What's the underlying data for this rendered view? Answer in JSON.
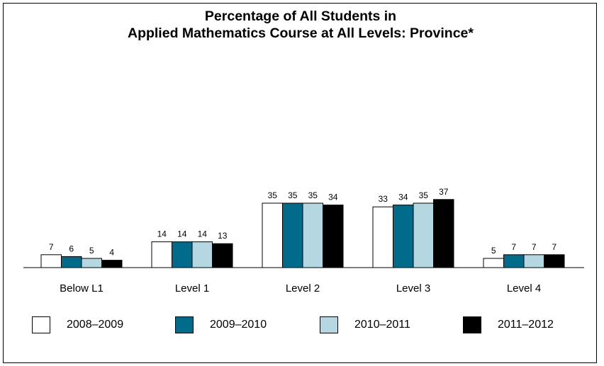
{
  "chart_data": {
    "type": "bar",
    "title": "Percentage of All Students in",
    "subtitle": "Applied Mathematics Course at All Levels: Province*",
    "xlabel": "",
    "ylabel": "",
    "ylim": [
      0,
      40
    ],
    "grid": false,
    "legend_position": "bottom",
    "categories": [
      "Below L1",
      "Level 1",
      "Level 2",
      "Level 3",
      "Level 4"
    ],
    "series": [
      {
        "name": "2008–2009",
        "color": "#ffffff",
        "values": [
          7,
          14,
          35,
          33,
          5
        ]
      },
      {
        "name": "2009–2010",
        "color": "#006b8a",
        "values": [
          6,
          14,
          35,
          34,
          7
        ]
      },
      {
        "name": "2010–2011",
        "color": "#b5d7e2",
        "values": [
          5,
          14,
          35,
          35,
          7
        ]
      },
      {
        "name": "2011–2012",
        "color": "#000000",
        "values": [
          4,
          13,
          34,
          37,
          7
        ]
      }
    ]
  }
}
